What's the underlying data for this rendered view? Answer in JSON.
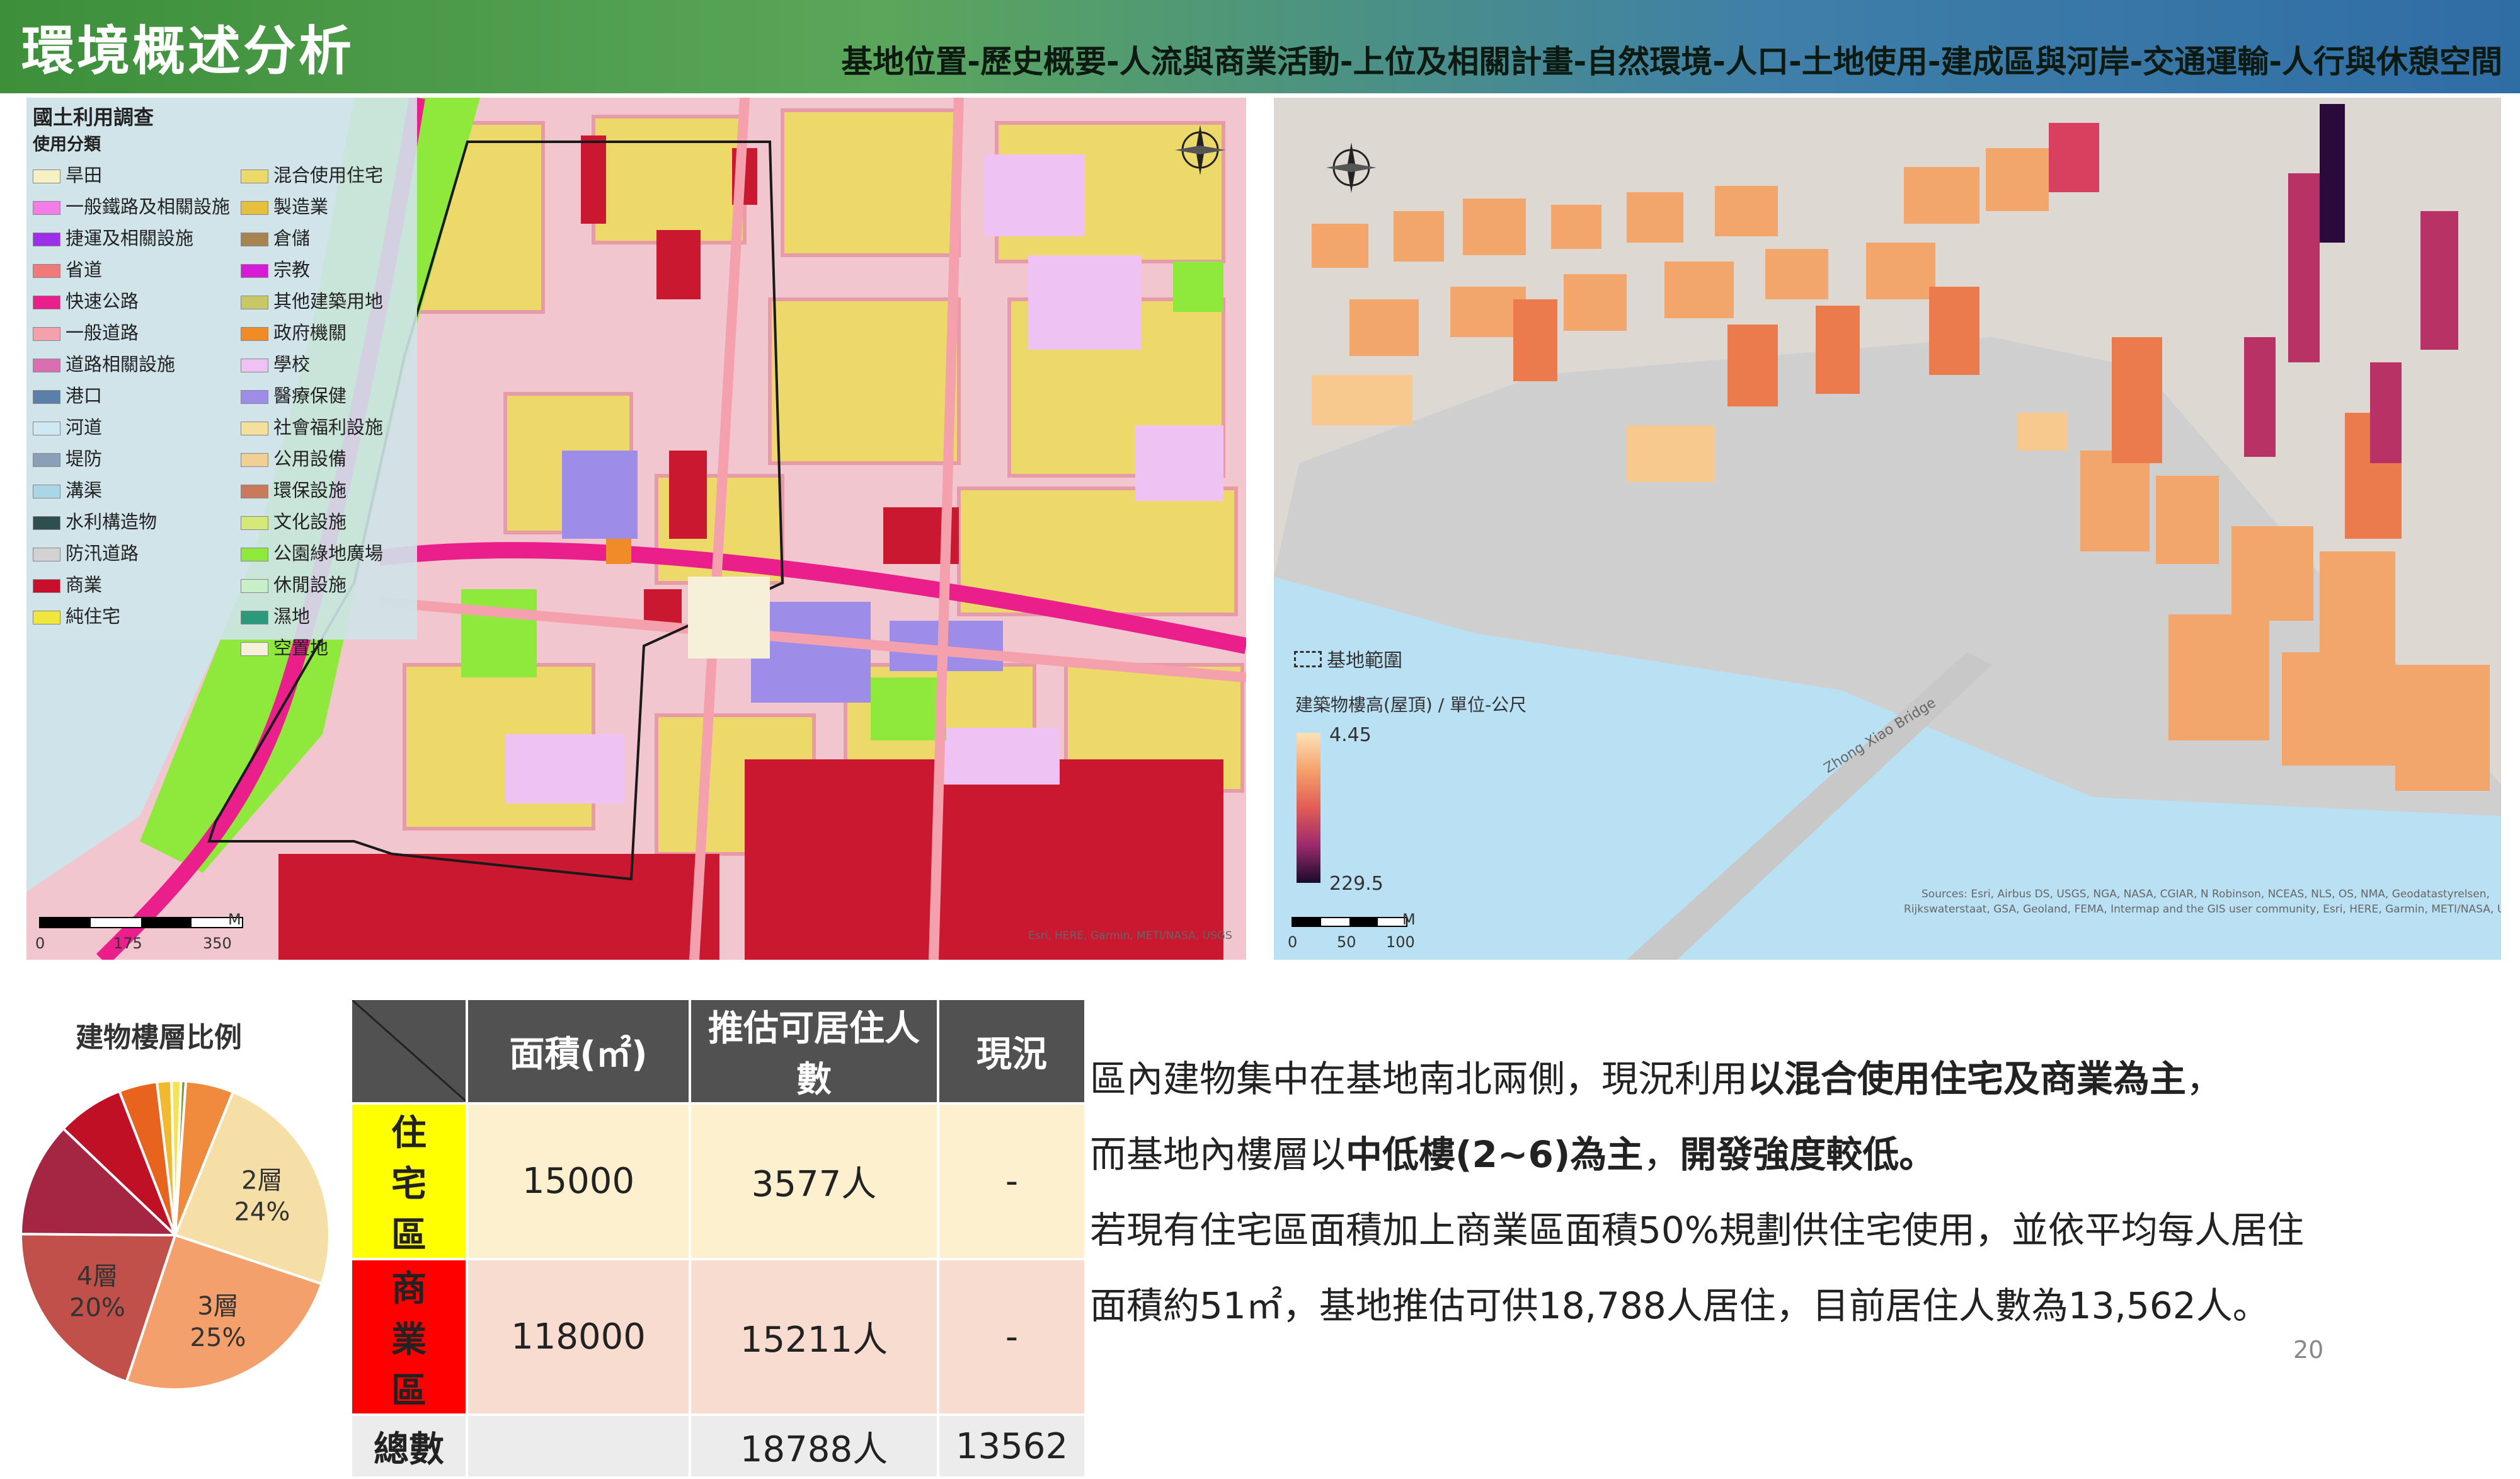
{
  "header": {
    "title": "環境概述分析",
    "breadcrumb": "基地位置-歷史概要-人流與商業活動-上位及相關計畫-自然環境-人口-土地使用-建成區與河岸-交通運輸-人行與休憩空間"
  },
  "left_map": {
    "legend_title": "國土利用調查",
    "legend_subtitle": "使用分類",
    "legend_col1": [
      {
        "label": "旱田",
        "color": "#f6f1c3"
      },
      {
        "label": "一般鐵路及相關設施",
        "color": "#f27ce8"
      },
      {
        "label": "捷運及相關設施",
        "color": "#9b30e8"
      },
      {
        "label": "省道",
        "color": "#f07a7a"
      },
      {
        "label": "快速公路",
        "color": "#ea1f8c"
      },
      {
        "label": "一般道路",
        "color": "#f4a1ad"
      },
      {
        "label": "道路相關設施",
        "color": "#d96fb0"
      },
      {
        "label": "港口",
        "color": "#5a7fa8"
      },
      {
        "label": "河道",
        "color": "#cfe9f4"
      },
      {
        "label": "堤防",
        "color": "#8aa0b8"
      },
      {
        "label": "溝渠",
        "color": "#a9d7e6"
      },
      {
        "label": "水利構造物",
        "color": "#2f4f4f"
      },
      {
        "label": "防汛道路",
        "color": "#d2d2d2"
      },
      {
        "label": "商業",
        "color": "#c8102e"
      },
      {
        "label": "純住宅",
        "color": "#f0e63c"
      }
    ],
    "legend_col2": [
      {
        "label": "混合使用住宅",
        "color": "#ecd96a"
      },
      {
        "label": "製造業",
        "color": "#e6bf3c"
      },
      {
        "label": "倉儲",
        "color": "#a88352"
      },
      {
        "label": "宗教",
        "color": "#d61ad6"
      },
      {
        "label": "其他建築用地",
        "color": "#c8c866"
      },
      {
        "label": "政府機關",
        "color": "#f08c28"
      },
      {
        "label": "學校",
        "color": "#efc2f4"
      },
      {
        "label": "醫療保健",
        "color": "#9d8ce8"
      },
      {
        "label": "社會福利設施",
        "color": "#f4e09a"
      },
      {
        "label": "公用設備",
        "color": "#f2cf95"
      },
      {
        "label": "環保設施",
        "color": "#c97a5a"
      },
      {
        "label": "文化設施",
        "color": "#d6e87a"
      },
      {
        "label": "公園綠地廣場",
        "color": "#8fe83c"
      },
      {
        "label": "休閒設施",
        "color": "#c8f0c8"
      },
      {
        "label": "濕地",
        "color": "#2a9a7a"
      },
      {
        "label": "空置地",
        "color": "#f7f0d8"
      }
    ],
    "scale_unit": "M",
    "scale_ticks": [
      "0",
      "175",
      "350"
    ],
    "attribution": "Esri, HERE, Garmin, METI/NASA, USGS"
  },
  "right_map": {
    "legend_boundary": "基地範圍",
    "legend_height_title": "建築物樓高(屋頂) / 單位-公尺",
    "legend_min": "4.45",
    "legend_max": "229.5",
    "bridge_label": "Zhong Xiao Bridge",
    "scale_unit": "M",
    "scale_ticks": [
      "0",
      "50",
      "100"
    ],
    "attribution_line1": "Sources: Esri, Airbus DS, USGS, NGA, NASA, CGIAR, N Robinson, NCEAS, NLS, OS, NMA, Geodatastyrelsen,",
    "attribution_line2": "Rijkswaterstaat, GSA, Geoland, FEMA, Intermap and the GIS user community, Esri, HERE, Garmin, METI/NASA, USGS"
  },
  "pie": {
    "title": "建物樓層比例",
    "slices": [
      {
        "label": "2層",
        "pct": 24,
        "value_label": "24%",
        "color": "#f6dfa6"
      },
      {
        "label": "3層",
        "pct": 25,
        "value_label": "25%",
        "color": "#f3a06c"
      },
      {
        "label": "4層",
        "pct": 20,
        "value_label": "20%",
        "color": "#c2504a"
      },
      {
        "label": "",
        "pct": 12,
        "value_label": "",
        "color": "#a52642"
      },
      {
        "label": "",
        "pct": 7,
        "value_label": "",
        "color": "#c01025"
      },
      {
        "label": "",
        "pct": 4,
        "value_label": "",
        "color": "#e8641e"
      },
      {
        "label": "",
        "pct": 1.5,
        "value_label": "",
        "color": "#f2b830"
      },
      {
        "label": "",
        "pct": 1,
        "value_label": "",
        "color": "#f5e255"
      },
      {
        "label": "",
        "pct": 0.5,
        "value_label": "",
        "color": "#7a9d3a"
      },
      {
        "label": "",
        "pct": 5,
        "value_label": "",
        "color": "#f08a3c"
      }
    ]
  },
  "table": {
    "headers": [
      "",
      "面積(㎡)",
      "推估可居住人數",
      "現況"
    ],
    "rows": [
      {
        "name": "住宅區",
        "area": "15000",
        "capacity": "3577人",
        "current": "-",
        "bg": "#fdf0cf",
        "label_bg": "#ffff00",
        "label_color": "#222"
      },
      {
        "name": "商業區",
        "area": "118000",
        "capacity": "15211人",
        "current": "-",
        "bg": "#f9dcd0",
        "label_bg": "#ff0000",
        "label_color": "#222"
      },
      {
        "name": "總數",
        "area": "",
        "capacity": "18788人",
        "current": "13562",
        "bg": "#ececec",
        "label_bg": "#ececec",
        "label_color": "#222"
      }
    ]
  },
  "description": {
    "line1_pre": "區內建物集中在基地南北兩側，現況利用",
    "line1_bold": "以混合使用住宅及商業為主",
    "line1_post": "，",
    "line2_pre": "而基地內樓層以",
    "line2_bold1": "中低樓(2~6)為主",
    "line2_mid": "，",
    "line2_bold2": "開發強度較低。",
    "line3": "若現有住宅區面積加上商業區面積50%規劃供住宅使用，並依平均每人居住",
    "line4": "面積約51㎡，基地推估可供18,788人居住，目前居住人數為13,562人。"
  },
  "page_number": "20"
}
